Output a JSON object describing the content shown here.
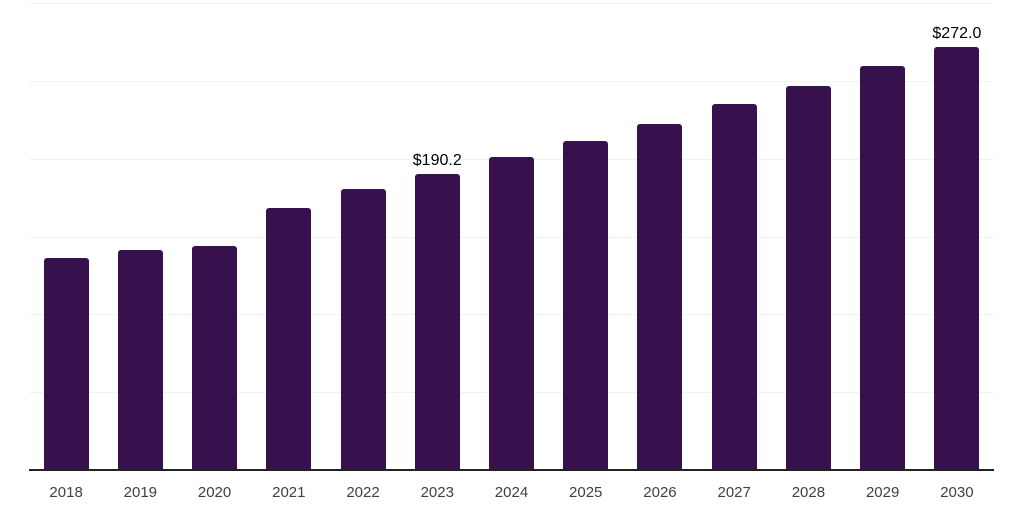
{
  "chart_data": {
    "type": "bar",
    "title": "",
    "xlabel": "",
    "ylabel": "",
    "categories": [
      "2018",
      "2019",
      "2020",
      "2021",
      "2022",
      "2023",
      "2024",
      "2025",
      "2026",
      "2027",
      "2028",
      "2029",
      "2030"
    ],
    "values": [
      136.0,
      141.4,
      144.0,
      168.4,
      180.3,
      190.2,
      201.0,
      211.5,
      222.3,
      235.0,
      246.4,
      259.5,
      272.0
    ],
    "data_labels": [
      "",
      "",
      "",
      "",
      "",
      "$190.2",
      "",
      "",
      "",
      "",
      "",
      "",
      "$272.0"
    ],
    "ylim": [
      0,
      300
    ],
    "y_gridline_interval": 50,
    "grid": "horizontal",
    "legend": "none",
    "value_prefix": "$"
  },
  "style": {
    "bar_color": "#36114D",
    "gridline_color": "#f2f2f2",
    "axis_color": "#222222",
    "tick_label_color": "#404040",
    "data_label_color": "#000000",
    "background": "#ffffff"
  }
}
